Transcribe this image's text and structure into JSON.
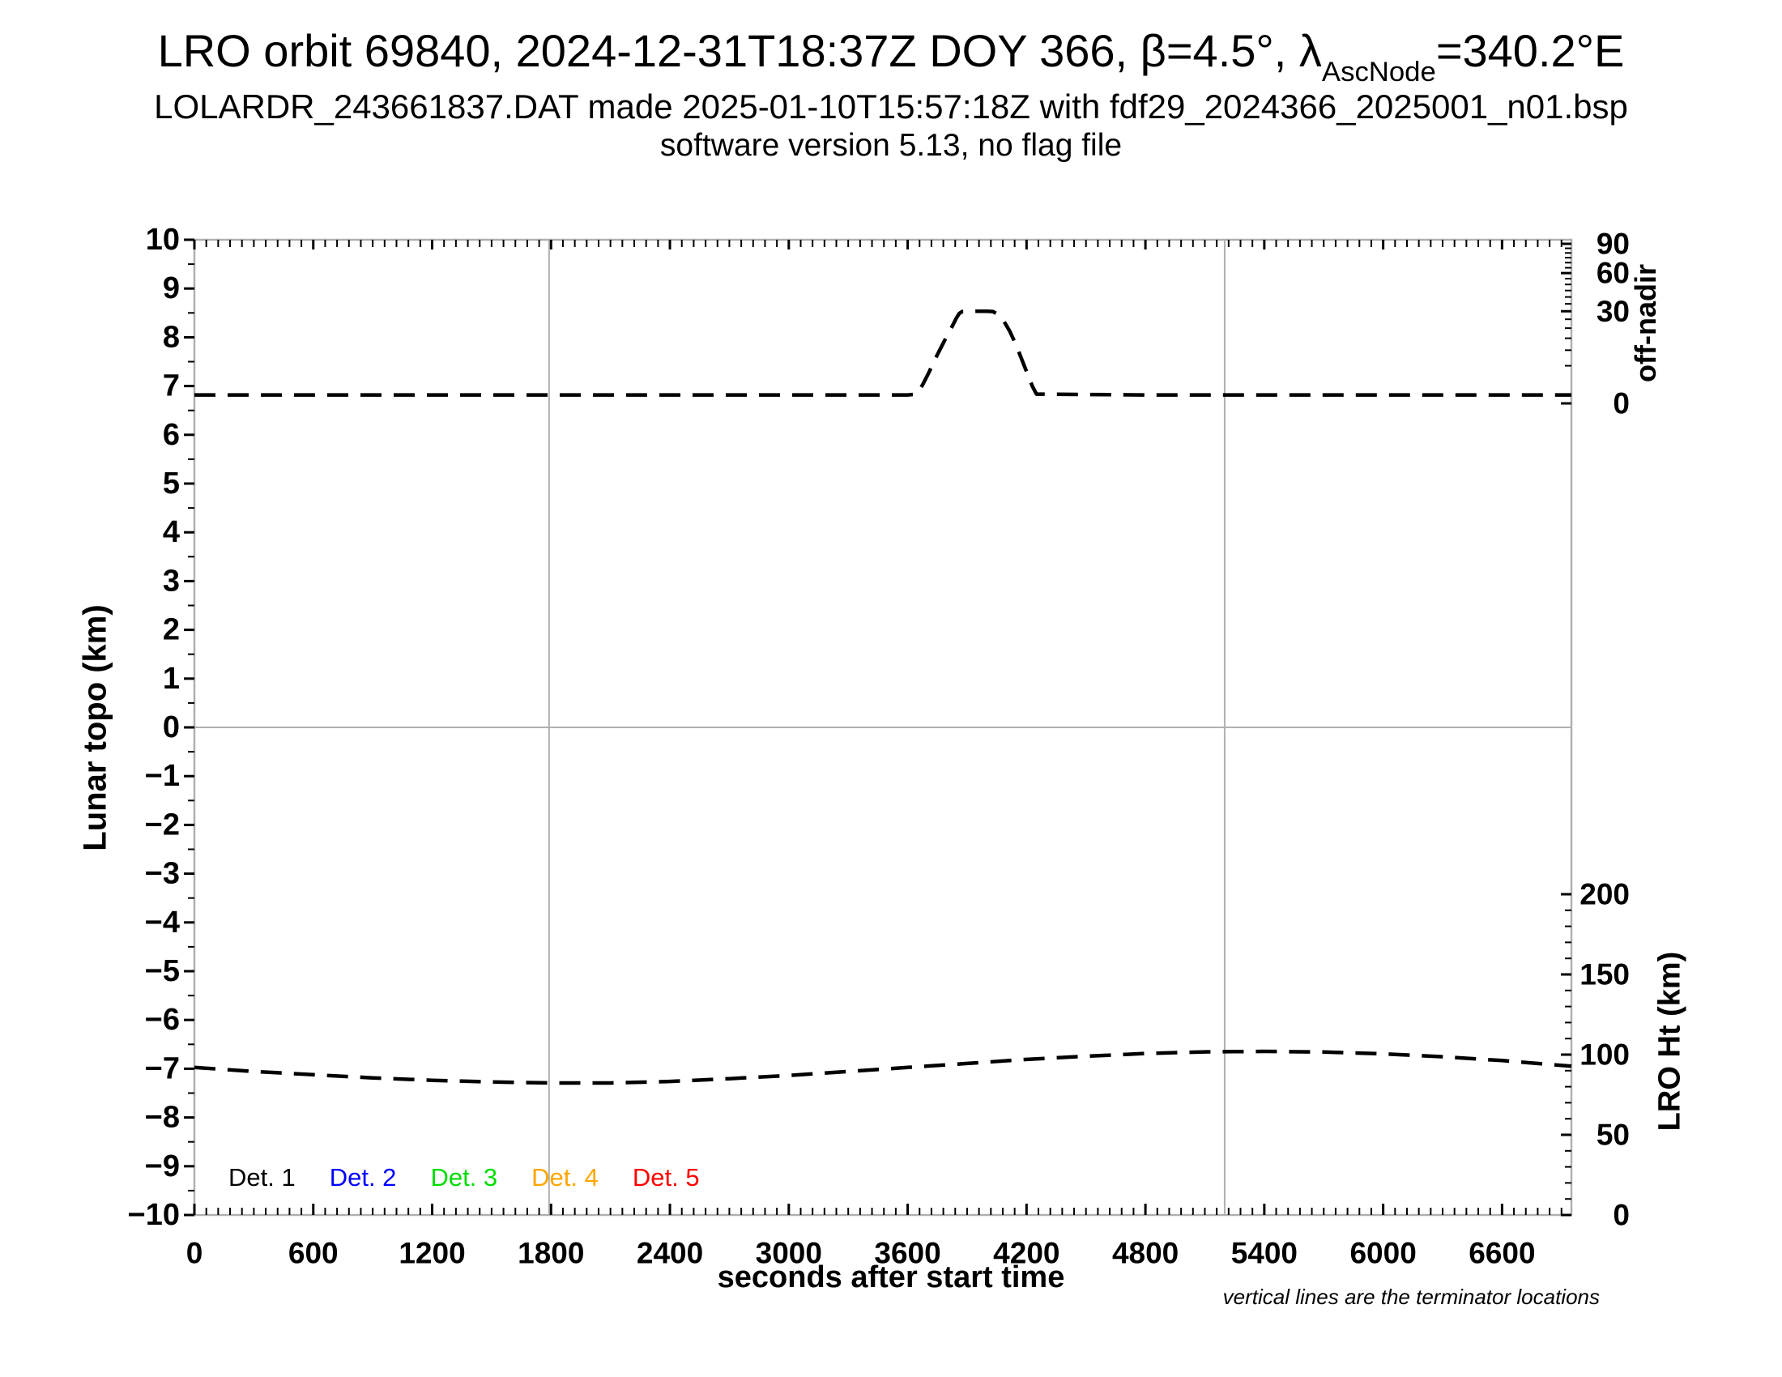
{
  "header": {
    "title_part1": "LRO orbit 69840, 2024-12-31T18:37Z DOY 366, β=4.5°, λ",
    "title_subscript": "AscNode",
    "title_part2": "=340.2°E",
    "subtitle1": "LOLARDR_243661837.DAT made 2025-01-10T15:57:18Z with fdf29_2024366_2025001_n01.bsp",
    "subtitle2": "software version 5.13, no flag file"
  },
  "footnote": "vertical lines are the terminator locations",
  "legend": {
    "items": [
      {
        "label": "Det. 1",
        "color": "#000000"
      },
      {
        "label": "Det. 2",
        "color": "#0000ff"
      },
      {
        "label": "Det. 3",
        "color": "#00dd00"
      },
      {
        "label": "Det. 4",
        "color": "#ffa500"
      },
      {
        "label": "Det. 5",
        "color": "#ff0000"
      }
    ]
  },
  "chart_data": {
    "type": "line",
    "title": "LRO orbit 69840, 2024-12-31T18:37Z DOY 366, β=4.5°, λAscNode=340.2°E",
    "x_axis": {
      "label": "seconds after start time",
      "range": [
        0,
        6950
      ],
      "major_ticks": [
        0,
        600,
        1200,
        1800,
        2400,
        3000,
        3600,
        4200,
        4800,
        5400,
        6000,
        6600
      ],
      "minor_step": 60
    },
    "y_left": {
      "label": "Lunar topo (km)",
      "range": [
        -10,
        10
      ],
      "major_step": 1,
      "minor_step": 0.5,
      "zero_gridline": true
    },
    "y_right_top": {
      "label": "off-nadir",
      "unit": "degrees",
      "scale": "sqrt",
      "major_ticks": [
        0,
        30,
        60,
        90
      ],
      "minor_step": 5
    },
    "y_right_bottom": {
      "label": "LRO Ht (km)",
      "range": [
        0,
        200
      ],
      "major_step": 50,
      "minor_step": 10
    },
    "terminator_lines_s": [
      1790,
      5200
    ],
    "grid": "zero line and terminator verticals only",
    "legend_position": "bottom-left inside plot",
    "colors": {
      "curve": "#000000",
      "axis_gray": "#b0b0b0"
    },
    "series": [
      {
        "name": "off-nadir angle",
        "axis": "y_right_top",
        "unit": "deg",
        "style": "dashed-black",
        "points": [
          [
            0,
            0.25
          ],
          [
            600,
            0.25
          ],
          [
            1200,
            0.25
          ],
          [
            1800,
            0.25
          ],
          [
            2400,
            0.25
          ],
          [
            3000,
            0.25
          ],
          [
            3600,
            0.25
          ],
          [
            3645,
            0.3
          ],
          [
            3675,
            1.2
          ],
          [
            3705,
            3.2
          ],
          [
            3735,
            6.5
          ],
          [
            3765,
            10.5
          ],
          [
            3795,
            15.5
          ],
          [
            3825,
            21.0
          ],
          [
            3845,
            25.5
          ],
          [
            3860,
            28.5
          ],
          [
            3875,
            29.8
          ],
          [
            3900,
            30
          ],
          [
            4000,
            30
          ],
          [
            4030,
            29.8
          ],
          [
            4055,
            28.0
          ],
          [
            4085,
            24.0
          ],
          [
            4115,
            18.5
          ],
          [
            4145,
            12.5
          ],
          [
            4175,
            7.0
          ],
          [
            4205,
            3.0
          ],
          [
            4230,
            1.0
          ],
          [
            4250,
            0.3
          ],
          [
            4800,
            0.25
          ],
          [
            5400,
            0.25
          ],
          [
            6000,
            0.25
          ],
          [
            6600,
            0.25
          ],
          [
            6950,
            0.25
          ]
        ]
      },
      {
        "name": "LRO height",
        "axis": "y_right_bottom",
        "unit": "km",
        "style": "dashed-black",
        "points": [
          [
            0,
            92
          ],
          [
            300,
            89.5
          ],
          [
            600,
            87.5
          ],
          [
            900,
            85.5
          ],
          [
            1200,
            84
          ],
          [
            1500,
            83
          ],
          [
            1800,
            82.3
          ],
          [
            2100,
            82.3
          ],
          [
            2400,
            83.3
          ],
          [
            2700,
            85
          ],
          [
            3000,
            87
          ],
          [
            3300,
            89.5
          ],
          [
            3600,
            92
          ],
          [
            3900,
            94.5
          ],
          [
            4200,
            97
          ],
          [
            4500,
            99
          ],
          [
            4800,
            100.7
          ],
          [
            5100,
            101.7
          ],
          [
            5400,
            102
          ],
          [
            5700,
            101.6
          ],
          [
            6000,
            100.5
          ],
          [
            6300,
            98.7
          ],
          [
            6600,
            96.3
          ],
          [
            6950,
            92.8
          ]
        ]
      }
    ]
  }
}
